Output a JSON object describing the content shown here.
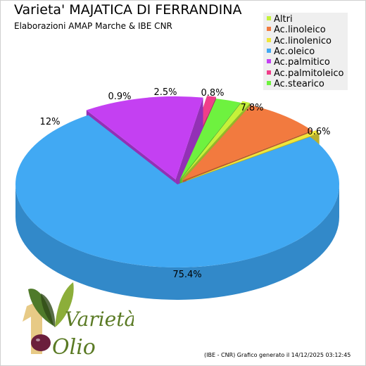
{
  "title": "Varieta' MAJATICA DI FERRANDINA",
  "subtitle": "Elaborazioni AMAP Marche & IBE CNR",
  "footer": "(IBE - CNR) Grafico generato il 14/12/2025 03:12:45",
  "logo": {
    "text_top": "Varietà",
    "text_bottom": "Olio",
    "numeral": "1"
  },
  "chart_data": {
    "type": "pie",
    "title": "Varieta' MAJATICA DI FERRANDINA",
    "legend_position": "top-right",
    "slices": [
      {
        "name": "Altri",
        "value": 0.8,
        "label": "0.8%",
        "color": "#c5f23a",
        "dark": "#94b62b"
      },
      {
        "name": "Ac.linoleico",
        "value": 7.8,
        "label": "7.8%",
        "color": "#f27a3f",
        "dark": "#b85c2f"
      },
      {
        "name": "Ac.linolenico",
        "value": 0.6,
        "label": "0.6%",
        "color": "#efe63c",
        "dark": "#b8b02e"
      },
      {
        "name": "Ac.oleico",
        "value": 75.4,
        "label": "75.4%",
        "color": "#41a9f3",
        "dark": "#3289c9"
      },
      {
        "name": "Ac.palmitico",
        "value": 12,
        "label": "12%",
        "color": "#c440f2",
        "dark": "#9330b6"
      },
      {
        "name": "Ac.palmitoleico",
        "value": 0.9,
        "label": "0.9%",
        "color": "#f03e8a",
        "dark": "#b42f67"
      },
      {
        "name": "Ac.stearico",
        "value": 2.5,
        "label": "2.5%",
        "color": "#6ef23f",
        "dark": "#52b62f"
      }
    ]
  }
}
